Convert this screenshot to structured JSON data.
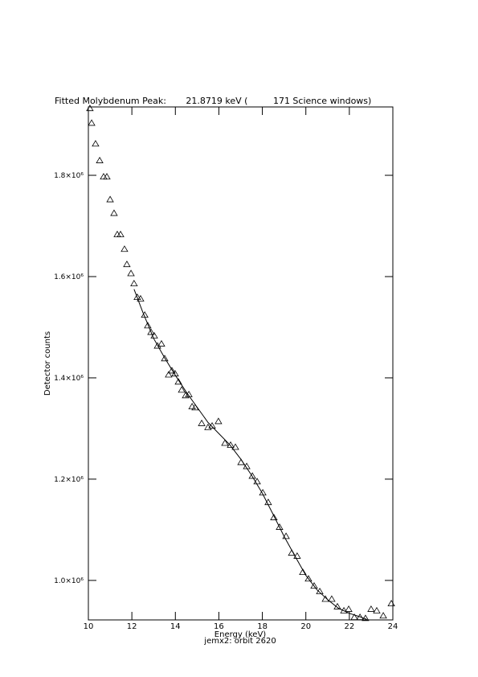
{
  "chart_data": {
    "type": "scatter",
    "title": "Fitted Molybdenum Peak:       21.8719 keV (         171 Science windows)",
    "xlabel": "Energy (keV)",
    "subtitle": "jemx2: orbit 2620",
    "ylabel": "Detector counts",
    "xlim": [
      10,
      24
    ],
    "ylim": [
      922000,
      1935000
    ],
    "xticks": [
      10,
      12,
      14,
      16,
      18,
      20,
      22,
      24
    ],
    "yticks": [
      {
        "value": 1000000,
        "label": "1.0×10⁶"
      },
      {
        "value": 1200000,
        "label": "1.2×10⁶"
      },
      {
        "value": 1400000,
        "label": "1.4×10⁶"
      },
      {
        "value": 1600000,
        "label": "1.6×10⁶"
      },
      {
        "value": 1800000,
        "label": "1.8×10⁶"
      }
    ],
    "points": {
      "marker": "triangle",
      "color": "#000000",
      "x": [
        10.07,
        10.15,
        10.33,
        10.52,
        10.7,
        10.85,
        11.0,
        11.18,
        11.33,
        11.48,
        11.66,
        11.77,
        11.96,
        12.1,
        12.25,
        12.4,
        12.59,
        12.73,
        12.88,
        13.03,
        13.18,
        13.36,
        13.51,
        13.69,
        13.84,
        13.99,
        14.14,
        14.29,
        14.47,
        14.62,
        14.77,
        14.91,
        15.21,
        15.5,
        15.69,
        15.98,
        16.28,
        16.54,
        16.76,
        17.02,
        17.28,
        17.54,
        17.76,
        18.02,
        18.27,
        18.53,
        18.79,
        19.09,
        19.35,
        19.6,
        19.86,
        20.12,
        20.38,
        20.64,
        20.9,
        21.19,
        21.45,
        21.75,
        21.97,
        22.23,
        22.49,
        22.74,
        23.0,
        23.26,
        23.56,
        23.93
      ],
      "y": [
        1932000,
        1903000,
        1862000,
        1829000,
        1797000,
        1797000,
        1752000,
        1725000,
        1683000,
        1683000,
        1654000,
        1624000,
        1606000,
        1586000,
        1559000,
        1556000,
        1524000,
        1503000,
        1490000,
        1483000,
        1463000,
        1467000,
        1438000,
        1406000,
        1414000,
        1408000,
        1392000,
        1376000,
        1365000,
        1367000,
        1343000,
        1341000,
        1310000,
        1302000,
        1305000,
        1314000,
        1271000,
        1267000,
        1263000,
        1233000,
        1225000,
        1206000,
        1195000,
        1173000,
        1154000,
        1124000,
        1105000,
        1087000,
        1054000,
        1048000,
        1016000,
        1003000,
        989000,
        978000,
        963000,
        963000,
        948000,
        940000,
        943000,
        927000,
        927000,
        925000,
        943000,
        940000,
        930000,
        954000
      ]
    },
    "fit": {
      "color": "#000000",
      "x": [
        12.1,
        12.5,
        13.0,
        13.5,
        14.0,
        14.5,
        15.0,
        15.5,
        16.0,
        16.5,
        17.0,
        17.5,
        18.0,
        18.5,
        19.0,
        19.5,
        20.0,
        20.5,
        21.0,
        21.5,
        22.0,
        22.5,
        22.8
      ],
      "y": [
        1575000,
        1530000,
        1478000,
        1440000,
        1405000,
        1372000,
        1342000,
        1312000,
        1290000,
        1268000,
        1240000,
        1208000,
        1172000,
        1130000,
        1087000,
        1048000,
        1010000,
        982000,
        962000,
        945000,
        935000,
        928000,
        923000
      ]
    }
  }
}
